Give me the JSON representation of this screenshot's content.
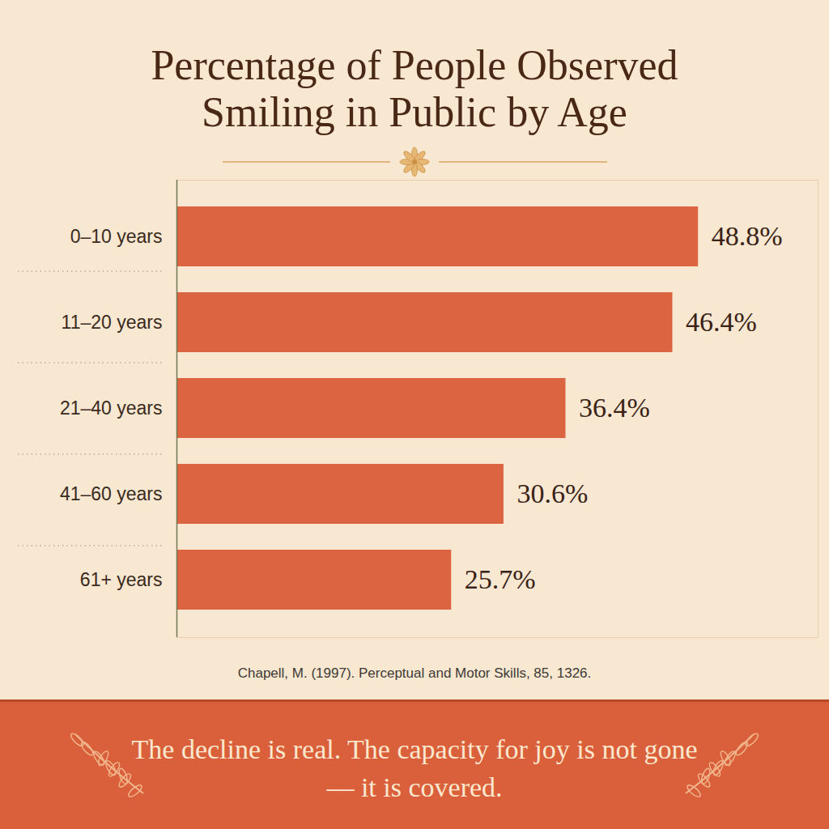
{
  "chart_data": {
    "type": "bar",
    "title": "Percentage of People Observed Smiling in Public by Age",
    "categories": [
      "0–10 years",
      "11–20 years",
      "21–40 years",
      "41–60 years",
      "61+ years"
    ],
    "values": [
      48.8,
      46.4,
      36.4,
      30.6,
      25.7
    ],
    "value_labels": [
      "48.8%",
      "46.4%",
      "36.4%",
      "30.6%",
      "25.7%"
    ],
    "color": "#dd6440",
    "orientation": "horizontal",
    "data_labels": true,
    "tick_labels": "y",
    "grid": false,
    "xlim": [
      0,
      60
    ],
    "source": "Chapell, M. (1997). Perceptual and Motor Skills, 85, 1326.",
    "annotations": [
      "The decline is real. The capacity for joy is not gone — it is covered."
    ]
  }
}
